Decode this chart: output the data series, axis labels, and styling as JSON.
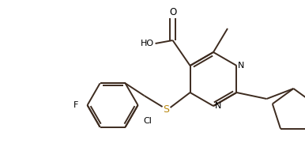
{
  "background_color": "#ffffff",
  "bond_color": "#3d2b1f",
  "S_color": "#b8860b",
  "atom_color": "#000000",
  "line_width": 1.4,
  "figsize": [
    3.86,
    1.96
  ],
  "dpi": 100,
  "xlim": [
    0,
    386
  ],
  "ylim": [
    0,
    196
  ]
}
